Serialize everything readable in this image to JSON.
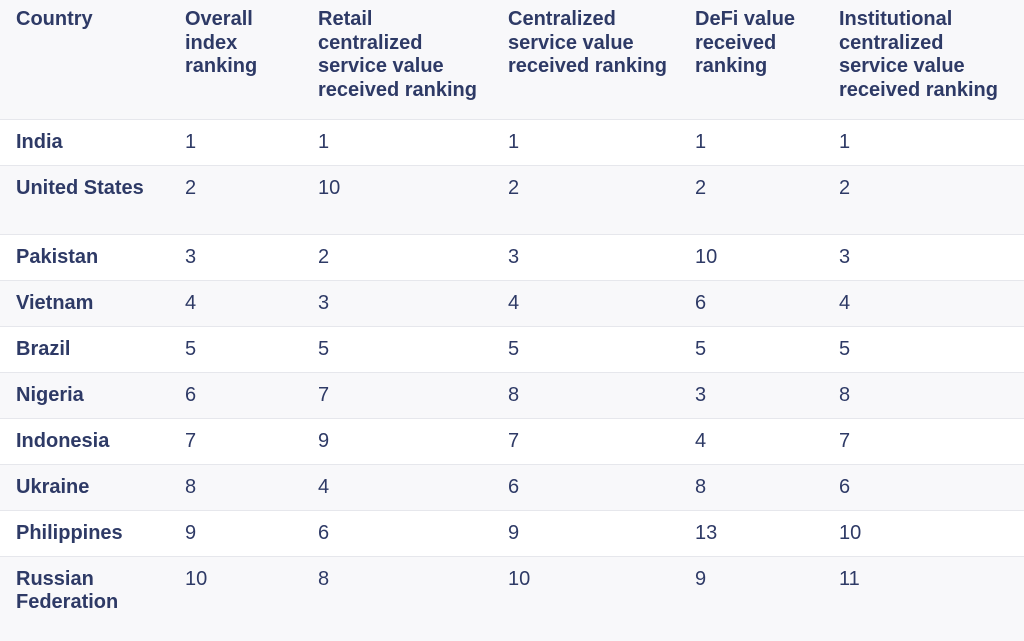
{
  "table": {
    "headers": [
      "Country",
      "Overall index ranking",
      "Retail centralized service value received ranking",
      "Centralized service value received ranking",
      "DeFi value received ranking",
      "Institutional centralized service value received ranking"
    ],
    "rows": [
      [
        "India",
        "1",
        "1",
        "1",
        "1",
        "1"
      ],
      [
        "United States",
        "2",
        "10",
        "2",
        "2",
        "2"
      ],
      [
        "Pakistan",
        "3",
        "2",
        "3",
        "10",
        "3"
      ],
      [
        "Vietnam",
        "4",
        "3",
        "4",
        "6",
        "4"
      ],
      [
        "Brazil",
        "5",
        "5",
        "5",
        "5",
        "5"
      ],
      [
        "Nigeria",
        "6",
        "7",
        "8",
        "3",
        "8"
      ],
      [
        "Indonesia",
        "7",
        "9",
        "7",
        "4",
        "7"
      ],
      [
        "Ukraine",
        "8",
        "4",
        "6",
        "8",
        "6"
      ],
      [
        "Philippines",
        "9",
        "6",
        "9",
        "13",
        "10"
      ],
      [
        "Russian Federation",
        "10",
        "8",
        "10",
        "9",
        "11"
      ]
    ]
  }
}
